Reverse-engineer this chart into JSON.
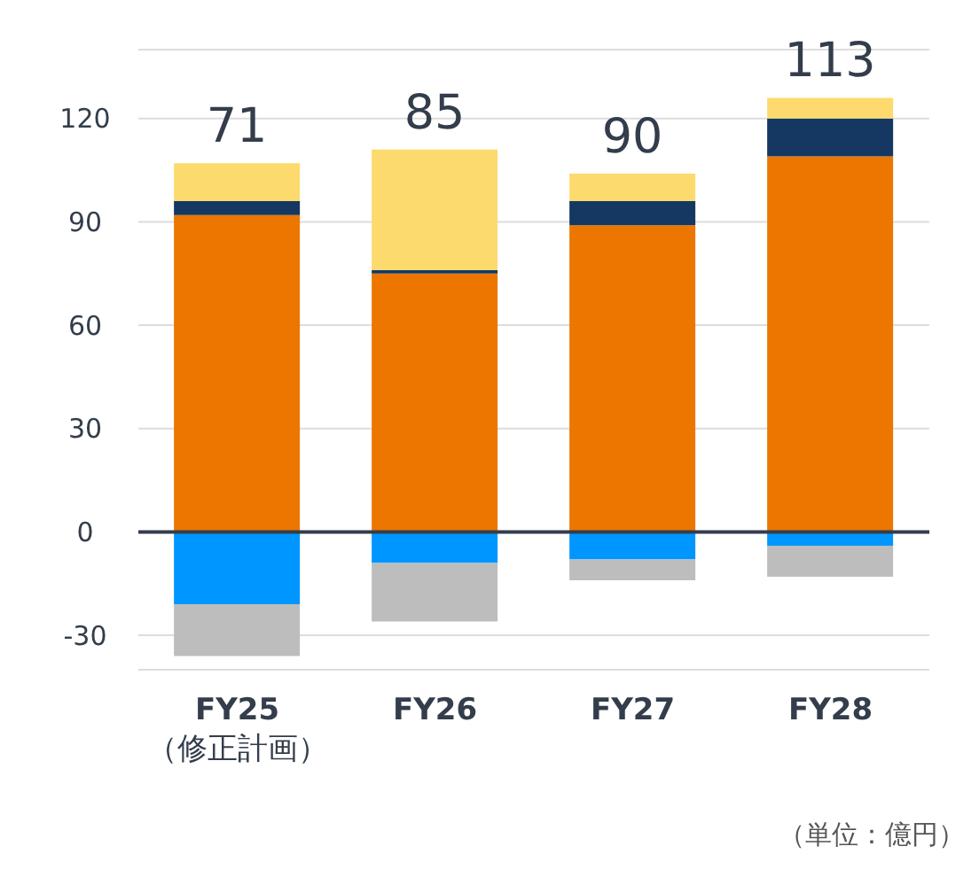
{
  "chart_data": {
    "type": "bar",
    "stacked": true,
    "categories": [
      "FY25\n（修正計画）",
      "FY26",
      "FY27",
      "FY28"
    ],
    "series": [
      {
        "color": "#ec7600",
        "values": [
          92,
          75,
          89,
          109
        ]
      },
      {
        "color": "#153862",
        "values": [
          4,
          1,
          7,
          11
        ]
      },
      {
        "color": "#fdda6e",
        "values": [
          11,
          35,
          8,
          6
        ]
      },
      {
        "color": "#0096ff",
        "values": [
          -21,
          -9,
          -8,
          -4
        ]
      },
      {
        "color": "#bdbdbd",
        "values": [
          -15,
          -17,
          -6,
          -9
        ]
      }
    ],
    "totals": [
      "71",
      "85",
      "90",
      "113"
    ],
    "ylim": [
      -40,
      140
    ],
    "yticks": [
      -30,
      0,
      30,
      60,
      90,
      120
    ],
    "grid": "y",
    "ref_lines": [
      {
        "axis": "y",
        "value": 0,
        "color": "#333d4b"
      }
    ],
    "annotations": [
      "（単位：億円）"
    ]
  }
}
